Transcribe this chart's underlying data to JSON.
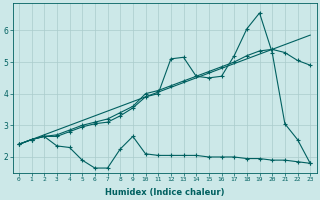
{
  "xlabel": "Humidex (Indice chaleur)",
  "background_color": "#cce8e8",
  "grid_color": "#aacccc",
  "line_color": "#006060",
  "xlim": [
    -0.5,
    23.5
  ],
  "ylim": [
    1.5,
    6.85
  ],
  "xticks": [
    0,
    1,
    2,
    3,
    4,
    5,
    6,
    7,
    8,
    9,
    10,
    11,
    12,
    13,
    14,
    15,
    16,
    17,
    18,
    19,
    20,
    21,
    22,
    23
  ],
  "yticks": [
    2,
    3,
    4,
    5,
    6
  ],
  "series1_x": [
    0,
    1,
    2,
    3,
    4,
    5,
    6,
    7,
    8,
    9,
    10,
    11,
    12,
    13,
    14,
    15,
    16,
    17,
    18,
    19,
    20,
    21,
    22,
    23
  ],
  "series1_y": [
    2.4,
    2.55,
    2.65,
    2.35,
    2.3,
    1.9,
    1.65,
    1.65,
    2.25,
    2.65,
    2.1,
    2.05,
    2.05,
    2.05,
    2.05,
    2.0,
    2.0,
    2.0,
    1.95,
    1.95,
    1.9,
    1.9,
    1.85,
    1.8
  ],
  "series2_x": [
    0,
    1,
    2,
    3,
    4,
    5,
    6,
    7,
    8,
    9,
    10,
    11,
    12,
    13,
    14,
    15,
    16,
    17,
    18,
    19,
    20,
    21,
    22,
    23
  ],
  "series2_y": [
    2.4,
    2.55,
    2.65,
    2.65,
    2.8,
    2.95,
    3.05,
    3.1,
    3.3,
    3.55,
    3.9,
    4.0,
    5.1,
    5.15,
    4.55,
    4.5,
    4.55,
    5.2,
    6.05,
    6.55,
    5.3,
    3.05,
    2.55,
    1.8
  ],
  "series3_x": [
    0,
    1,
    2,
    3,
    4,
    5,
    6,
    7,
    8,
    9,
    10,
    11,
    12,
    13,
    14,
    15,
    16,
    17,
    18,
    19,
    20,
    21,
    22,
    23
  ],
  "series3_y": [
    2.4,
    2.55,
    2.65,
    2.7,
    2.85,
    3.0,
    3.1,
    3.2,
    3.4,
    3.6,
    4.0,
    4.1,
    4.25,
    4.4,
    4.55,
    4.7,
    4.85,
    5.0,
    5.2,
    5.35,
    5.4,
    5.3,
    5.05,
    4.9
  ],
  "series4_x": [
    0,
    23
  ],
  "series4_y": [
    2.4,
    5.85
  ]
}
